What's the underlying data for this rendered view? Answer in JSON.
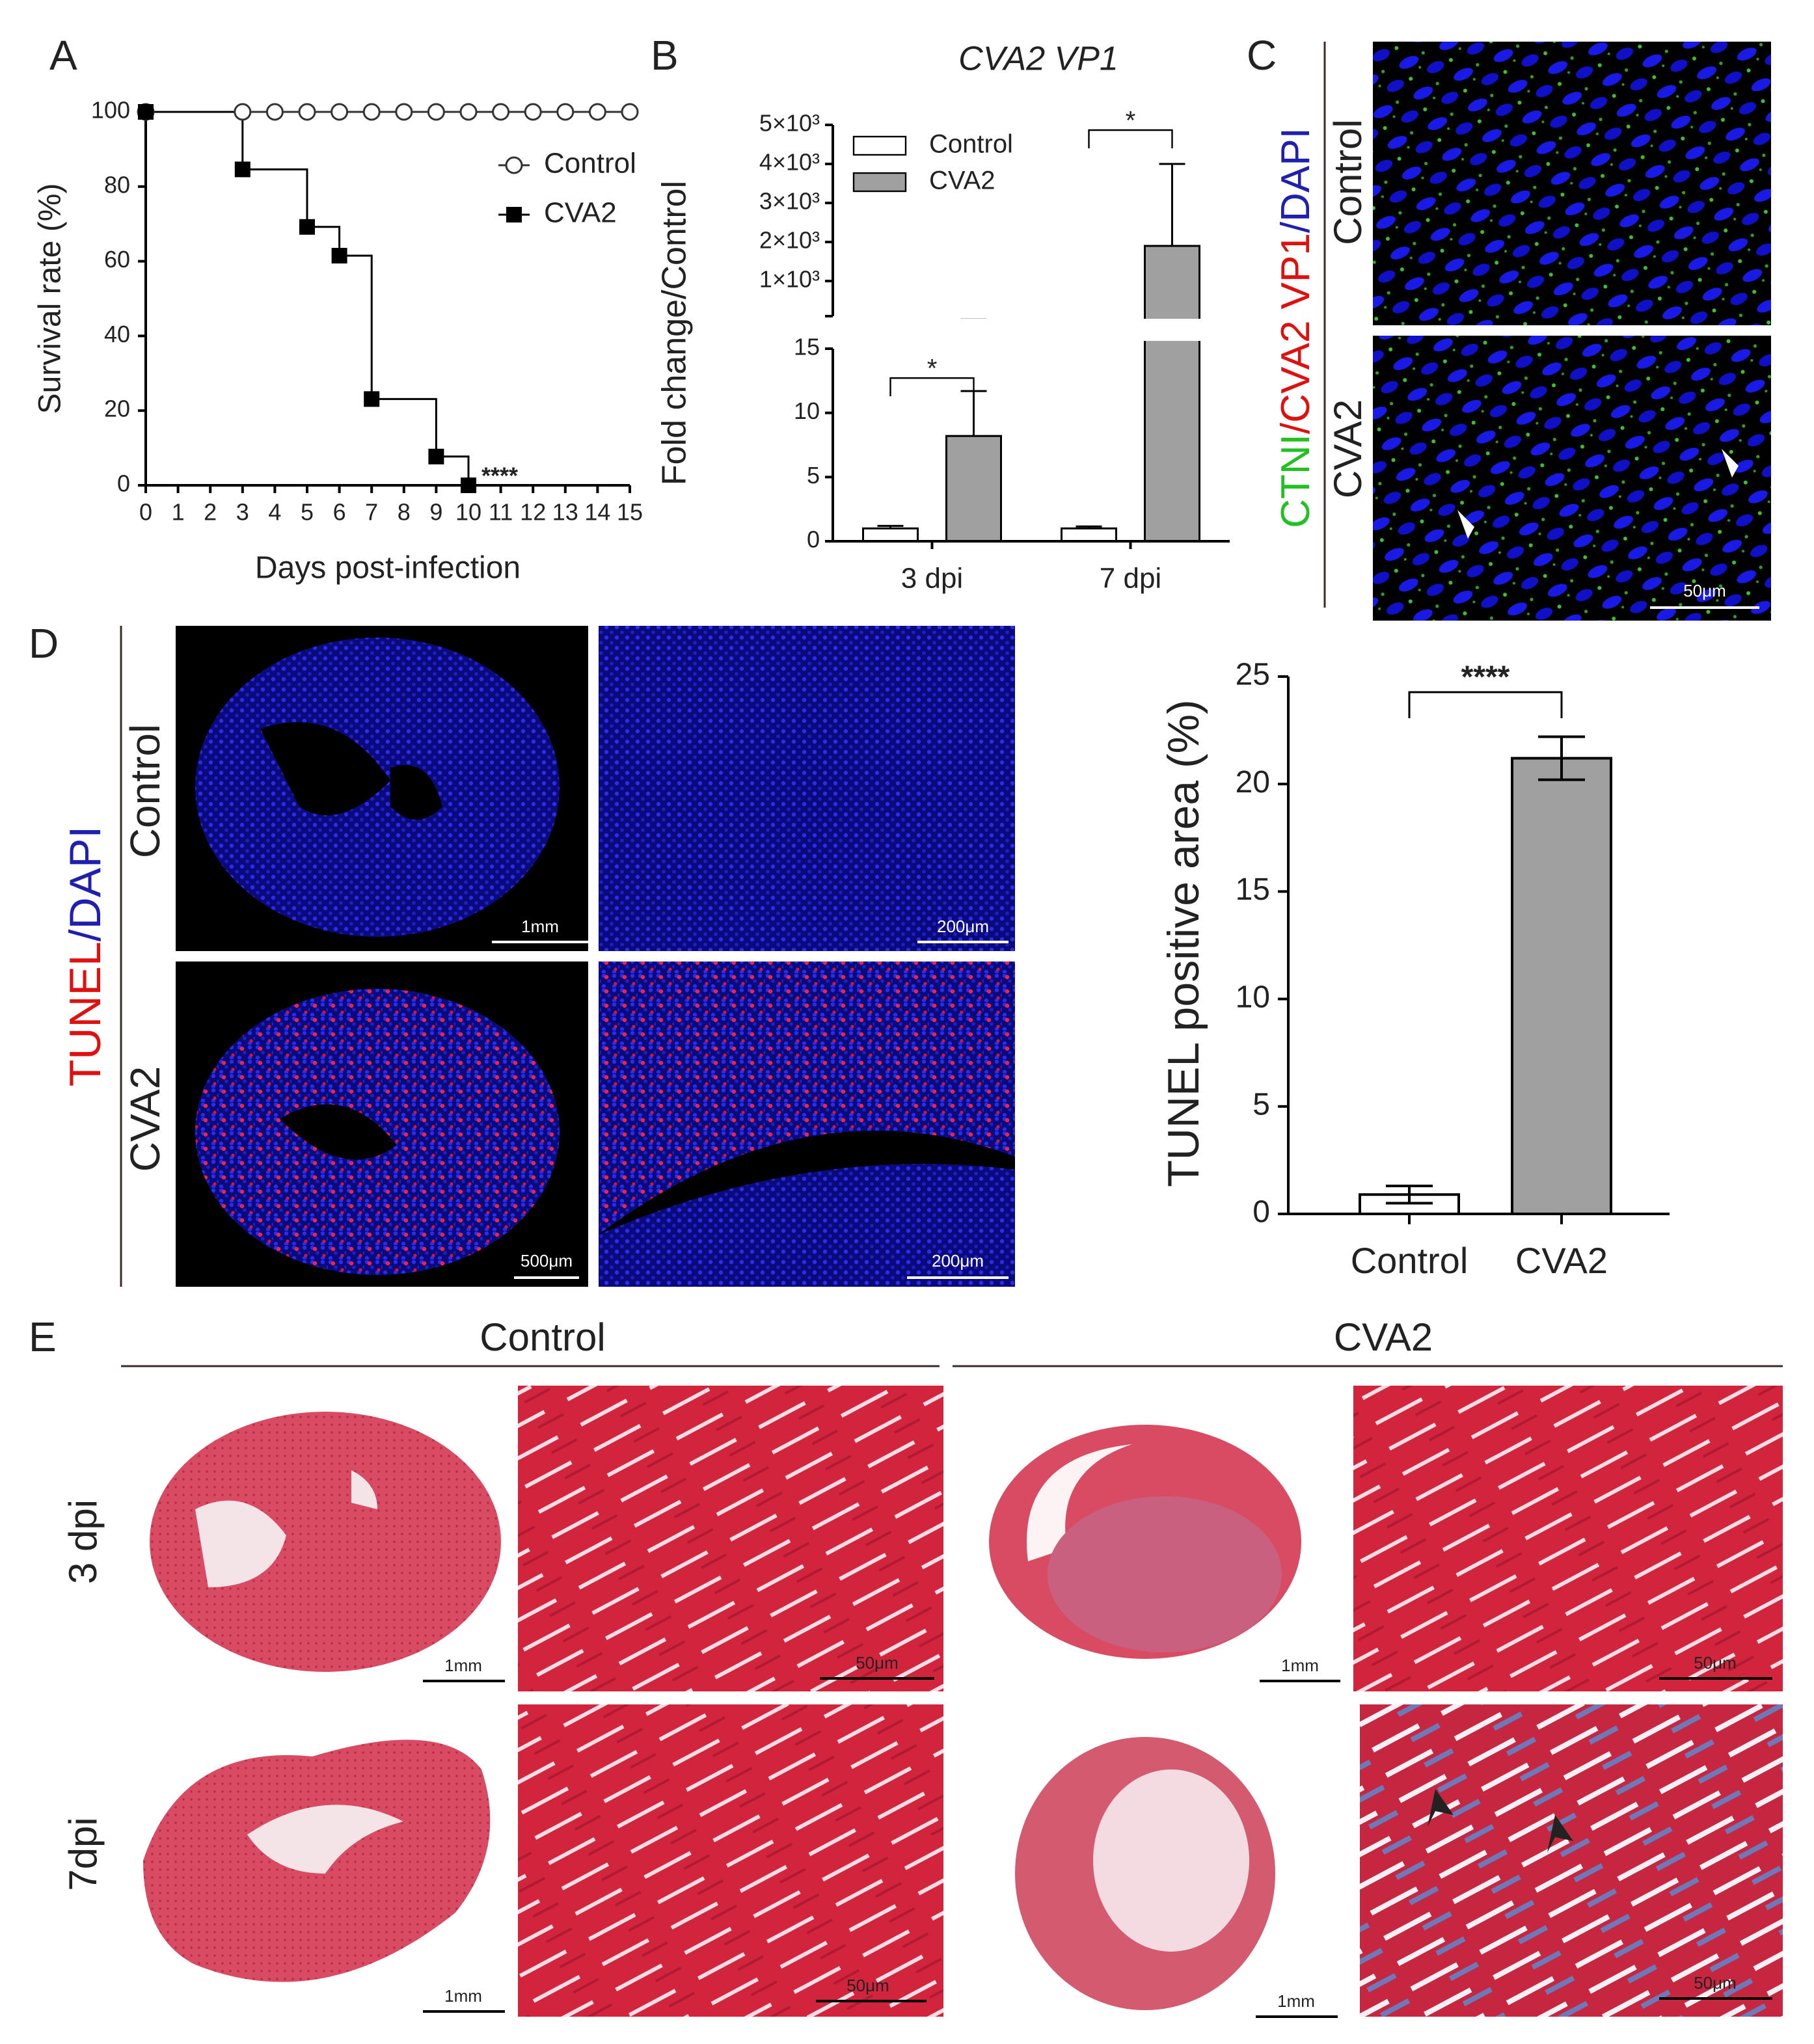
{
  "chart_data": [
    {
      "type": "line",
      "step": true,
      "xlabel": "Days post-infection",
      "ylabel": "Survival rate (%)",
      "xlim": [
        0,
        15
      ],
      "xticks": [
        0,
        1,
        2,
        3,
        4,
        5,
        6,
        7,
        8,
        9,
        10,
        11,
        12,
        13,
        14,
        15
      ],
      "ylim": [
        0,
        100
      ],
      "yticks": [
        0,
        20,
        40,
        60,
        80,
        100
      ],
      "legend": "right",
      "series": [
        {
          "name": "Control",
          "color": "#333333",
          "marker": "circle",
          "x": [
            0,
            3,
            4,
            5,
            6,
            7,
            8,
            9,
            10,
            11,
            12,
            13,
            14,
            15
          ],
          "values": [
            100,
            100,
            100,
            100,
            100,
            100,
            100,
            100,
            100,
            100,
            100,
            100,
            100,
            100
          ]
        },
        {
          "name": "CVA2",
          "color": "#000000",
          "marker": "square",
          "x": [
            0,
            3,
            5,
            6,
            7,
            9,
            10
          ],
          "values": [
            100,
            84.6,
            69.2,
            61.5,
            23.1,
            7.7,
            0
          ]
        }
      ],
      "annotation": "****"
    },
    {
      "type": "broken-bar",
      "title": "CVA2 VP1",
      "ylabel": "Fold change/Control",
      "categories": [
        "3 dpi",
        "7 dpi"
      ],
      "legend": "upper left",
      "series": [
        {
          "name": "Control",
          "color": "#ffffff",
          "values": [
            1,
            1
          ],
          "errors": [
            0.2,
            0.15
          ]
        },
        {
          "name": "CVA2",
          "color": "#a0a0a0",
          "values": [
            8.2,
            1900
          ],
          "errors": [
            3.5,
            2100
          ]
        }
      ],
      "segments": [
        {
          "ylim": [
            0,
            15
          ],
          "yticks": [
            0,
            5,
            10,
            15
          ]
        },
        {
          "ylim": [
            100,
            5000
          ],
          "yticks": [
            {
              "value": 1000,
              "label": "1×10³"
            },
            {
              "value": 2000,
              "label": "2×10³"
            },
            {
              "value": 3000,
              "label": "3×10³"
            },
            {
              "value": 4000,
              "label": "4×10³"
            },
            {
              "value": 5000,
              "label": "5×10³"
            }
          ]
        }
      ],
      "significance": [
        "*",
        "*"
      ]
    },
    {
      "type": "bar",
      "ylabel": "TUNEL positive area (%)",
      "categories": [
        "Control",
        "CVA2"
      ],
      "values": [
        0.9,
        21.2
      ],
      "errors": [
        0.4,
        1.0
      ],
      "colors": [
        "#ffffff",
        "#a0a0a0"
      ],
      "ylim": [
        0,
        25
      ],
      "yticks": [
        0,
        5,
        10,
        15,
        20,
        25
      ],
      "significance": "****"
    }
  ],
  "panel_labels": [
    "A",
    "B",
    "C",
    "D",
    "E"
  ],
  "panel_c": {
    "stain": [
      "CTNI",
      "/CVA2 VP1",
      "/DAPI"
    ],
    "rows": [
      "Control",
      "CVA2"
    ],
    "scale_bar": "50μm"
  },
  "panel_d": {
    "stain": [
      "TUNEL",
      "/DAPI"
    ],
    "rows": [
      "Control",
      "CVA2"
    ],
    "scale_bars": [
      "1mm",
      "200μm",
      "500μm",
      "200μm"
    ]
  },
  "panel_e": {
    "columns": [
      "Control",
      "CVA2"
    ],
    "rows": [
      "3 dpi",
      "7dpi"
    ],
    "scale_bars": [
      "1mm",
      "50μm",
      "1mm",
      "50μm",
      "1mm",
      "50μm",
      "1mm",
      "50μm"
    ]
  }
}
